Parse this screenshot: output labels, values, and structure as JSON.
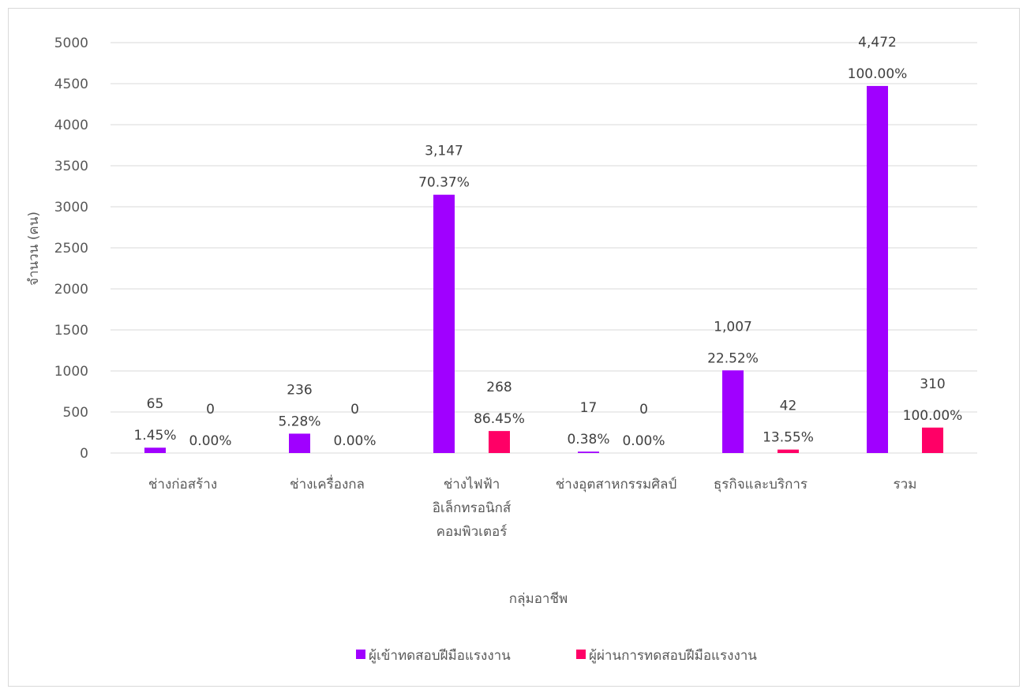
{
  "chart_data": {
    "type": "bar",
    "xlabel": "กลุ่มอาชีพ",
    "ylabel": "จำนวน (คน)",
    "ylim": [
      0,
      5000
    ],
    "yticks": [
      0,
      500,
      1000,
      1500,
      2000,
      2500,
      3000,
      3500,
      4000,
      4500,
      5000
    ],
    "grid": true,
    "legend_position": "bottom",
    "categories": [
      [
        "ช่างก่อสร้าง"
      ],
      [
        "ช่างเครื่องกล"
      ],
      [
        "ช่างไฟฟ้า",
        "อิเล็กทรอนิกส์",
        "คอมพิวเตอร์"
      ],
      [
        "ช่างอุตสาหกรรมศิลป์"
      ],
      [
        "ธุรกิจและบริการ"
      ],
      [
        "รวม"
      ]
    ],
    "series": [
      {
        "name": "ผู้เข้าทดสอบฝีมือแรงงาน",
        "color": "#a000ff",
        "values": [
          65,
          236,
          3147,
          17,
          1007,
          4472
        ],
        "value_labels": [
          "65",
          "236",
          "3,147",
          "17",
          "1,007",
          "4,472"
        ],
        "percent_labels": [
          "1.45%",
          "5.28%",
          "70.37%",
          "0.38%",
          "22.52%",
          "100.00%"
        ]
      },
      {
        "name": "ผู้ผ่านการทดสอบฝีมือแรงงาน",
        "color": "#ff0066",
        "values": [
          0,
          0,
          268,
          0,
          42,
          310
        ],
        "value_labels": [
          "0",
          "0",
          "268",
          "0",
          "42",
          "310"
        ],
        "percent_labels": [
          "0.00%",
          "0.00%",
          "86.45%",
          "0.00%",
          "13.55%",
          "100.00%"
        ]
      }
    ]
  }
}
